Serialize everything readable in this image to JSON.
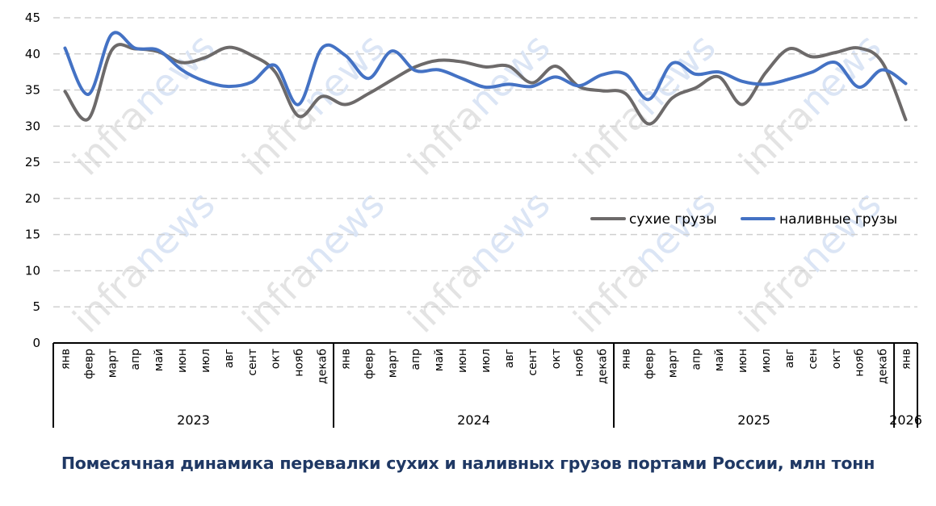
{
  "title": "Помесячная динамика перевалки сухих и наливных грузов портами России, млн тонн",
  "watermark": "infranews",
  "colors": {
    "dry": "#6d6a6a",
    "liquid": "#4472c4",
    "grid": "#d0d0d0",
    "title": "#1f3864"
  },
  "legend": {
    "dry_label": "сухие грузы",
    "liquid_label": "наливные грузы"
  },
  "chart_data": {
    "type": "line",
    "title": "Помесячная динамика перевалки сухих и наливных грузов портами России, млн тонн",
    "xlabel": "",
    "ylabel": "млн тонн",
    "ylim": [
      0,
      45
    ],
    "yticks": [
      0,
      5,
      10,
      15,
      20,
      25,
      30,
      35,
      40,
      45
    ],
    "grid": "horizontal dashed",
    "legend_position": "inside right, mid-height",
    "smoothed": true,
    "categories": [
      "янв",
      "февр",
      "март",
      "апр",
      "май",
      "июн",
      "июл",
      "авг",
      "сент",
      "окт",
      "нояб",
      "декаб",
      "янв",
      "февр",
      "март",
      "апр",
      "май",
      "июн",
      "июл",
      "авг",
      "сент",
      "окт",
      "нояб",
      "декаб",
      "янв",
      "февр",
      "март",
      "апр",
      "май",
      "июн",
      "июл",
      "авг",
      "сен",
      "окт",
      "нояб",
      "декаб",
      "янв"
    ],
    "year_groups": [
      {
        "label": "2023",
        "count": 12
      },
      {
        "label": "2024",
        "count": 12
      },
      {
        "label": "2025",
        "count": 12
      },
      {
        "label": "2026",
        "count": 1
      }
    ],
    "series": [
      {
        "name": "сухие грузы",
        "color": "#6d6a6a",
        "values": [
          34.8,
          31.0,
          40.5,
          40.7,
          40.3,
          38.8,
          39.5,
          40.9,
          39.8,
          37.5,
          31.4,
          34.1,
          33.0,
          34.5,
          36.4,
          38.2,
          39.1,
          38.9,
          38.2,
          38.3,
          36.0,
          38.3,
          35.5,
          34.9,
          34.5,
          30.3,
          33.9,
          35.3,
          36.8,
          33.0,
          37.4,
          40.7,
          39.6,
          40.2,
          40.8,
          38.8,
          30.9
        ]
      },
      {
        "name": "наливные грузы",
        "color": "#4472c4",
        "values": [
          40.8,
          34.4,
          42.7,
          40.8,
          40.5,
          37.8,
          36.2,
          35.5,
          36.1,
          38.4,
          33.0,
          40.8,
          39.8,
          36.6,
          40.4,
          37.7,
          37.8,
          36.6,
          35.4,
          35.8,
          35.5,
          36.8,
          35.6,
          37.1,
          37.2,
          33.7,
          38.7,
          37.2,
          37.5,
          36.2,
          35.8,
          36.5,
          37.5,
          38.8,
          35.4,
          37.8,
          35.9
        ]
      }
    ]
  }
}
